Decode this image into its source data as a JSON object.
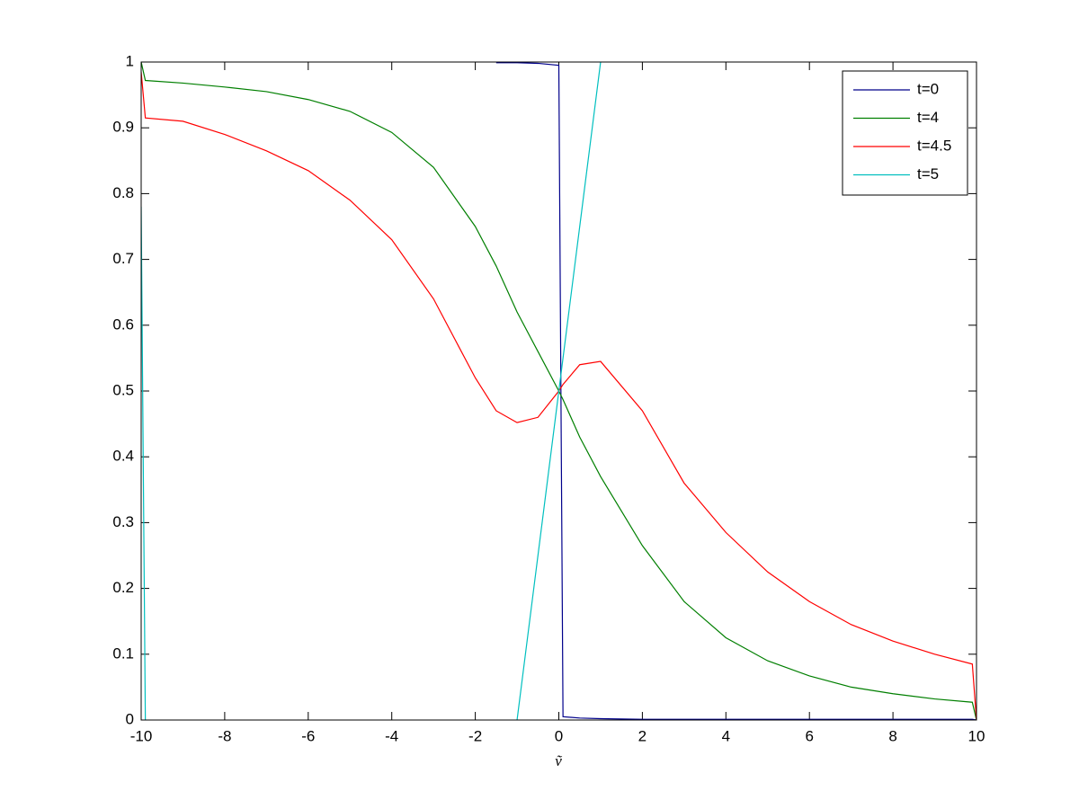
{
  "chart_data": {
    "type": "line",
    "xlabel": "ṽ",
    "x": [
      -10,
      -9.9,
      -9,
      -8,
      -7,
      -6,
      -5,
      -4,
      -3,
      -2,
      -1.5,
      -1,
      -0.5,
      0,
      0.1,
      0.5,
      1,
      2,
      3,
      4,
      5,
      6,
      7,
      8,
      9,
      9.9,
      10
    ],
    "series": [
      {
        "name": "t=0",
        "color": "#00008b",
        "values": [
          null,
          null,
          null,
          null,
          null,
          null,
          null,
          null,
          null,
          null,
          0.999,
          0.999,
          0.998,
          0.995,
          0.005,
          0.003,
          0.002,
          0.001,
          0.001,
          0.001,
          0.001,
          0.001,
          0.001,
          0.001,
          0.001,
          0.001,
          0
        ]
      },
      {
        "name": "t=4",
        "color": "#007f00",
        "values": [
          1.0,
          0.972,
          0.968,
          0.962,
          0.955,
          0.943,
          0.925,
          0.893,
          0.84,
          0.75,
          0.69,
          0.62,
          0.56,
          0.5,
          0.487,
          0.43,
          0.37,
          0.265,
          0.18,
          0.125,
          0.09,
          0.067,
          0.05,
          0.04,
          0.032,
          0.027,
          0
        ]
      },
      {
        "name": "t=4.5",
        "color": "#ff0000",
        "values": [
          0.985,
          0.915,
          0.91,
          0.89,
          0.865,
          0.835,
          0.79,
          0.73,
          0.64,
          0.52,
          0.47,
          0.452,
          0.46,
          0.5,
          0.51,
          0.54,
          0.545,
          0.47,
          0.36,
          0.285,
          0.225,
          0.18,
          0.145,
          0.12,
          0.1,
          0.085,
          0
        ]
      },
      {
        "name": "t=5",
        "color": "#00bfbf",
        "values": [
          0.78,
          0,
          null,
          null,
          null,
          null,
          null,
          null,
          null,
          null,
          null,
          0,
          0.25,
          0.5,
          0.55,
          0.75,
          1.0,
          null,
          null,
          null,
          null,
          null,
          null,
          null,
          null,
          null,
          null
        ]
      }
    ],
    "xlim": [
      -10,
      10
    ],
    "ylim": [
      0,
      1
    ],
    "xticks": [
      -10,
      -8,
      -6,
      -4,
      -2,
      0,
      2,
      4,
      6,
      8,
      10
    ],
    "yticks": [
      0,
      0.1,
      0.2,
      0.3,
      0.4,
      0.5,
      0.6,
      0.7,
      0.8,
      0.9,
      1
    ],
    "legend": "top-right",
    "grid": false
  }
}
